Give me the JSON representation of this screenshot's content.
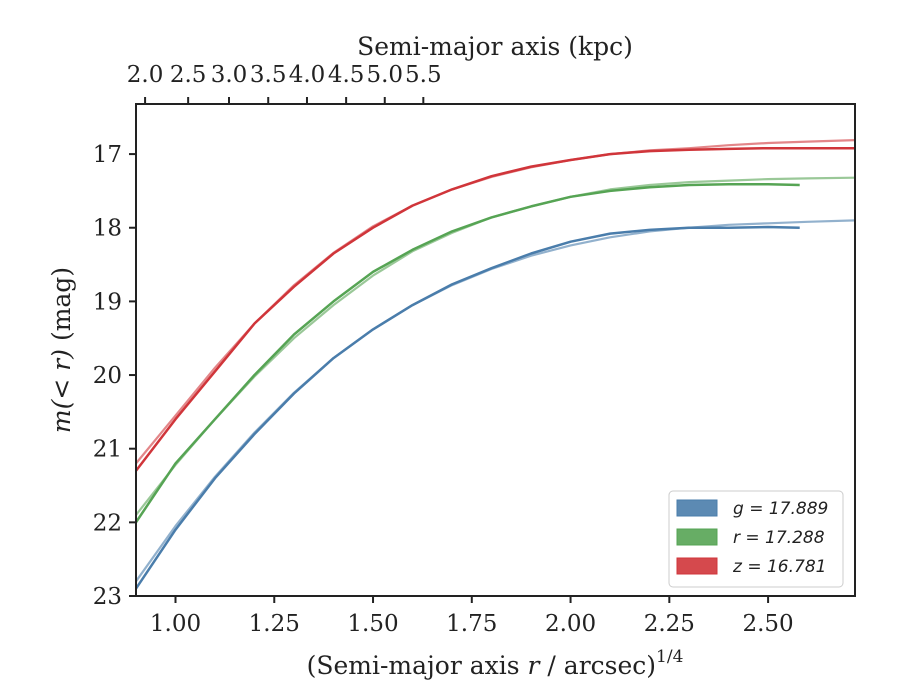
{
  "chart_data": {
    "type": "line",
    "top_axis": {
      "label": "Semi-major axis (kpc)",
      "ticks": [
        2.0,
        2.5,
        3.0,
        3.5,
        4.0,
        4.5,
        5.0,
        5.5
      ],
      "tick_labels": [
        "2.0",
        "2.5",
        "3.0",
        "3.5",
        "4.0",
        "4.5",
        "5.0",
        "5.5"
      ],
      "bottom_equivalent_at_ticks": [
        0.923,
        1.032,
        1.1354,
        1.2347,
        1.3328,
        1.4319,
        1.5297,
        1.6273
      ]
    },
    "x_axis": {
      "label_prefix": "(Semi-major axis ",
      "label_var": "r",
      "label_mid": " / arcsec)",
      "label_sup": "1/4",
      "lim": [
        0.9,
        2.72
      ],
      "ticks": [
        1.0,
        1.25,
        1.5,
        1.75,
        2.0,
        2.25,
        2.5
      ],
      "tick_labels": [
        "1.00",
        "1.25",
        "1.50",
        "1.75",
        "2.00",
        "2.25",
        "2.50"
      ]
    },
    "y_axis": {
      "label_var": "m",
      "label_expr": "(< r)",
      "label_unit": " (mag)",
      "lim": [
        23.0,
        16.32
      ],
      "inverted": true,
      "ticks": [
        17,
        18,
        19,
        20,
        21,
        22,
        23
      ],
      "tick_labels": [
        "17",
        "18",
        "19",
        "20",
        "21",
        "22",
        "23"
      ]
    },
    "legend_position": "lower-right",
    "series": [
      {
        "name": "g = 17.889",
        "color": "#4a7dab",
        "data_x": [
          0.9,
          1.0,
          1.1,
          1.2,
          1.3,
          1.4,
          1.5,
          1.6,
          1.7,
          1.8,
          1.9,
          2.0,
          2.1,
          2.2,
          2.3,
          2.4,
          2.5,
          2.58
        ],
        "data_y": [
          22.9,
          22.1,
          21.4,
          20.8,
          20.25,
          19.77,
          19.38,
          19.05,
          18.77,
          18.55,
          18.35,
          18.19,
          18.08,
          18.03,
          18.0,
          18.0,
          17.99,
          18.0
        ],
        "model_x": [
          0.9,
          1.0,
          1.1,
          1.2,
          1.3,
          1.4,
          1.5,
          1.6,
          1.7,
          1.8,
          1.9,
          2.0,
          2.1,
          2.2,
          2.3,
          2.4,
          2.5,
          2.6,
          2.72
        ],
        "model_y": [
          22.8,
          22.05,
          21.38,
          20.78,
          20.24,
          19.77,
          19.38,
          19.05,
          18.78,
          18.56,
          18.38,
          18.24,
          18.13,
          18.05,
          18.0,
          17.96,
          17.94,
          17.92,
          17.9
        ]
      },
      {
        "name": "r = 17.288",
        "color": "#56a454",
        "data_x": [
          0.9,
          1.0,
          1.1,
          1.2,
          1.3,
          1.4,
          1.5,
          1.6,
          1.7,
          1.8,
          1.9,
          2.0,
          2.1,
          2.2,
          2.3,
          2.4,
          2.5,
          2.58
        ],
        "data_y": [
          22.0,
          21.2,
          20.6,
          20.0,
          19.45,
          19.0,
          18.6,
          18.3,
          18.05,
          17.86,
          17.71,
          17.58,
          17.5,
          17.45,
          17.42,
          17.41,
          17.41,
          17.42
        ],
        "model_x": [
          0.9,
          1.0,
          1.1,
          1.2,
          1.3,
          1.4,
          1.5,
          1.6,
          1.7,
          1.8,
          1.9,
          2.0,
          2.1,
          2.2,
          2.3,
          2.4,
          2.5,
          2.6,
          2.72
        ],
        "model_y": [
          21.9,
          21.22,
          20.6,
          20.02,
          19.5,
          19.05,
          18.65,
          18.32,
          18.07,
          17.86,
          17.71,
          17.58,
          17.48,
          17.42,
          17.38,
          17.36,
          17.34,
          17.33,
          17.32
        ]
      },
      {
        "name": "z = 16.781",
        "color": "#d0353a",
        "data_x": [
          0.9,
          1.0,
          1.1,
          1.2,
          1.3,
          1.4,
          1.5,
          1.6,
          1.7,
          1.8,
          1.9,
          2.0,
          2.1,
          2.2,
          2.3,
          2.4,
          2.5,
          2.6,
          2.72
        ],
        "data_y": [
          21.3,
          20.6,
          19.95,
          19.3,
          18.8,
          18.35,
          18.0,
          17.7,
          17.48,
          17.3,
          17.17,
          17.08,
          17.0,
          16.96,
          16.94,
          16.93,
          16.92,
          16.92,
          16.92
        ],
        "model_x": [
          0.9,
          1.0,
          1.1,
          1.2,
          1.3,
          1.4,
          1.5,
          1.6,
          1.7,
          1.8,
          1.9,
          2.0,
          2.1,
          2.2,
          2.3,
          2.4,
          2.5,
          2.6,
          2.72
        ],
        "model_y": [
          21.2,
          20.55,
          19.9,
          19.3,
          18.78,
          18.34,
          17.98,
          17.7,
          17.48,
          17.31,
          17.18,
          17.08,
          17.0,
          16.95,
          16.92,
          16.88,
          16.85,
          16.83,
          16.81
        ]
      }
    ]
  }
}
